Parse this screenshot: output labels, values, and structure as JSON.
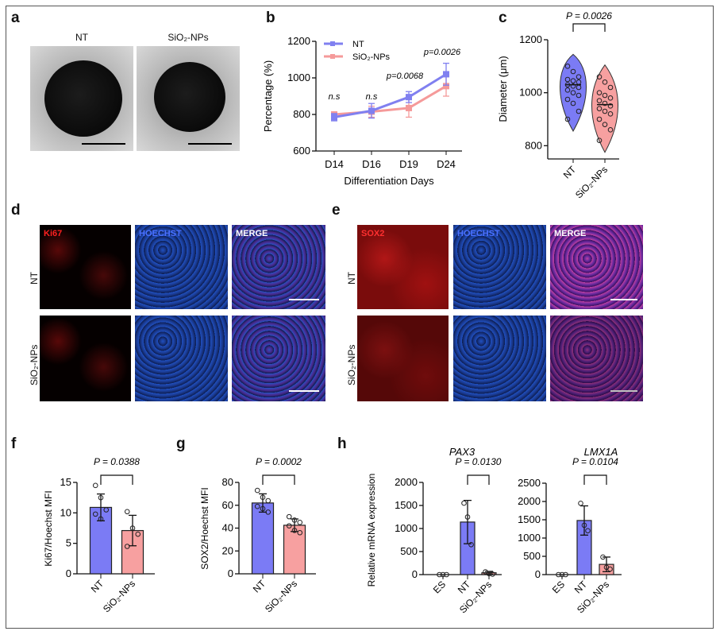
{
  "panels": {
    "a": "a",
    "b": "b",
    "c": "c",
    "d": "d",
    "e": "e",
    "f": "f",
    "g": "g",
    "h": "h"
  },
  "panel_a": {
    "col1": "NT",
    "col2": "SiO₂-NPs"
  },
  "panel_d": {
    "stains": [
      "Ki67",
      "HOECHST",
      "MERGE"
    ],
    "rows": [
      "NT",
      "SiO₂-NPs"
    ]
  },
  "panel_e": {
    "stains": [
      "SOX2",
      "HOECHST",
      "MERGE"
    ],
    "rows": [
      "NT",
      "SiO₂-NPs"
    ]
  },
  "colors": {
    "NT": "#8080f0",
    "SiO2": "#f59a9a",
    "NT_fill": "#7b7bf5",
    "SiO2_fill": "#f7a0a0"
  },
  "chart_data": [
    {
      "id": "b",
      "type": "line",
      "xlabel": "Differentiation Days",
      "ylabel": "Percentage (%)",
      "categories": [
        "D14",
        "D16",
        "D19",
        "D24"
      ],
      "ylim": [
        600,
        1200
      ],
      "yticks": [
        600,
        800,
        1000,
        1200
      ],
      "series": [
        {
          "name": "NT",
          "values": [
            785,
            820,
            895,
            1020
          ],
          "errors": [
            20,
            40,
            30,
            60
          ]
        },
        {
          "name": "SiO₂-NPs",
          "values": [
            800,
            815,
            835,
            955
          ],
          "errors": [
            15,
            30,
            50,
            55
          ]
        }
      ],
      "annotations": [
        "n.s",
        "n.s",
        "p=0.0068",
        "p=0.0026"
      ],
      "legend": "top-left"
    },
    {
      "id": "c",
      "type": "violin",
      "ylabel": "Diameter (μm)",
      "title": "P = 0.0026",
      "categories": [
        "NT",
        "SiO₂-NPs"
      ],
      "ylim": [
        750,
        1200
      ],
      "yticks": [
        800,
        1000,
        1200
      ],
      "points": [
        [
          1100,
          1080,
          1060,
          1050,
          1045,
          1040,
          1030,
          1025,
          1020,
          1010,
          1000,
          990,
          975,
          960,
          930,
          900
        ],
        [
          1060,
          1040,
          1020,
          1000,
          990,
          980,
          970,
          960,
          950,
          940,
          930,
          920,
          900,
          880,
          860,
          820
        ]
      ],
      "medians": [
        1030,
        955
      ]
    },
    {
      "id": "f",
      "type": "bar",
      "ylabel": "Ki67/Hoechst MFI",
      "title": "P = 0.0388",
      "categories": [
        "NT",
        "SiO₂-NPs"
      ],
      "ylim": [
        0,
        15
      ],
      "yticks": [
        0,
        5,
        10,
        15
      ],
      "values": [
        10.9,
        7.1
      ],
      "errors": [
        2.2,
        2.5
      ],
      "points": [
        [
          14.5,
          12.5,
          10.5,
          9.8,
          9.0
        ],
        [
          10.2,
          7.5,
          6.5,
          4.5
        ]
      ],
      "bracket": [
        0,
        1
      ]
    },
    {
      "id": "g",
      "type": "bar",
      "ylabel": "SOX2/Hoechst MFI",
      "title": "P = 0.0002",
      "categories": [
        "NT",
        "SiO₂-NPs"
      ],
      "ylim": [
        0,
        80
      ],
      "yticks": [
        0,
        20,
        40,
        60,
        80
      ],
      "values": [
        62,
        42.5
      ],
      "errors": [
        8,
        5.5
      ],
      "points": [
        [
          73,
          67,
          64,
          59,
          57,
          54
        ],
        [
          50,
          47,
          45,
          42,
          38,
          36
        ]
      ],
      "bracket": [
        0,
        1
      ]
    },
    {
      "id": "h1",
      "type": "bar",
      "gene": "PAX3",
      "ylabel": "Relative mRNA expression",
      "title": "P = 0.0130",
      "categories": [
        "ES",
        "NT",
        "SiO₂-NPs"
      ],
      "ylim": [
        0,
        2000
      ],
      "yticks": [
        0,
        500,
        1000,
        1500,
        2000
      ],
      "values": [
        0,
        1140,
        40
      ],
      "errors": [
        0,
        470,
        30
      ],
      "points": [
        [
          0,
          0,
          0
        ],
        [
          1550,
          1250,
          650
        ],
        [
          60,
          20,
          10
        ]
      ],
      "bracket": [
        1,
        2
      ]
    },
    {
      "id": "h2",
      "type": "bar",
      "gene": "LMX1A",
      "ylabel": "",
      "title": "P = 0.0104",
      "categories": [
        "ES",
        "NT",
        "SiO₂-NPs"
      ],
      "ylim": [
        0,
        2500
      ],
      "yticks": [
        0,
        500,
        1000,
        1500,
        2000,
        2500
      ],
      "values": [
        0,
        1480,
        280
      ],
      "errors": [
        0,
        400,
        200
      ],
      "points": [
        [
          0,
          0,
          0
        ],
        [
          1950,
          1350,
          1200
        ],
        [
          480,
          200,
          150
        ]
      ],
      "bracket": [
        1,
        2
      ]
    }
  ]
}
